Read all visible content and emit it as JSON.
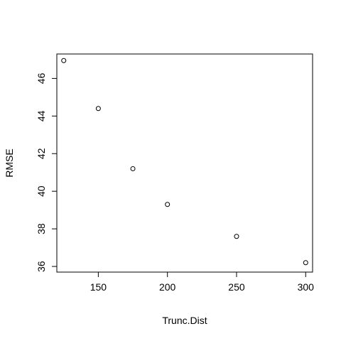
{
  "chart_data": {
    "type": "scatter",
    "title": "",
    "xlabel": "Trunc.Dist",
    "ylabel": "RMSE",
    "xlim": [
      120,
      305
    ],
    "ylim": [
      35.7,
      47.3
    ],
    "xticks": [
      150,
      200,
      250,
      300
    ],
    "yticks": [
      36,
      38,
      40,
      42,
      44,
      46
    ],
    "grid": false,
    "points": [
      {
        "x": 125,
        "y": 46.95
      },
      {
        "x": 150,
        "y": 44.4
      },
      {
        "x": 175,
        "y": 41.2
      },
      {
        "x": 200,
        "y": 39.3
      },
      {
        "x": 250,
        "y": 37.6
      },
      {
        "x": 300,
        "y": 36.2
      }
    ]
  }
}
